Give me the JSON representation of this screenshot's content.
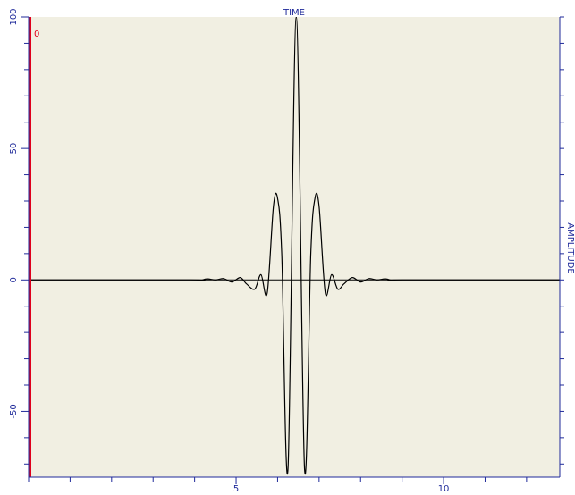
{
  "chart_data": {
    "type": "line",
    "title": "TIME",
    "xlabel": "",
    "ylabel": "AMPLITUDE",
    "xlim": [
      0,
      12.8
    ],
    "ylim": [
      -75,
      100
    ],
    "x_ticks": [
      5,
      10
    ],
    "y_ticks": [
      100,
      50,
      0,
      -50
    ],
    "grid": false,
    "marker_label": "0",
    "colors": {
      "background": "#f1efe2",
      "axis": "#1f2a9a",
      "marker": "#e0001b",
      "series": "#000000"
    },
    "series": [
      {
        "x": [
          0,
          3.9,
          4.1,
          4.3,
          4.5,
          4.7,
          4.9,
          5.1,
          5.25,
          5.45,
          5.6,
          5.75,
          5.9,
          6.0,
          6.1,
          6.25,
          6.45,
          6.65,
          6.8,
          6.9,
          7.0,
          7.15,
          7.3,
          7.45,
          7.6,
          7.8,
          8.0,
          8.2,
          8.4,
          8.6,
          8.8,
          9.0,
          12.8
        ],
        "values": [
          0,
          0,
          -0.3,
          0.4,
          0,
          0.5,
          -0.8,
          0.9,
          -1.5,
          -3.5,
          2,
          -5,
          28,
          31,
          10,
          -72,
          100,
          -72,
          10,
          31,
          28,
          -5,
          2,
          -3.5,
          -1.5,
          0.9,
          -0.8,
          0.5,
          0,
          0.4,
          -0.3,
          0,
          0
        ]
      }
    ]
  }
}
